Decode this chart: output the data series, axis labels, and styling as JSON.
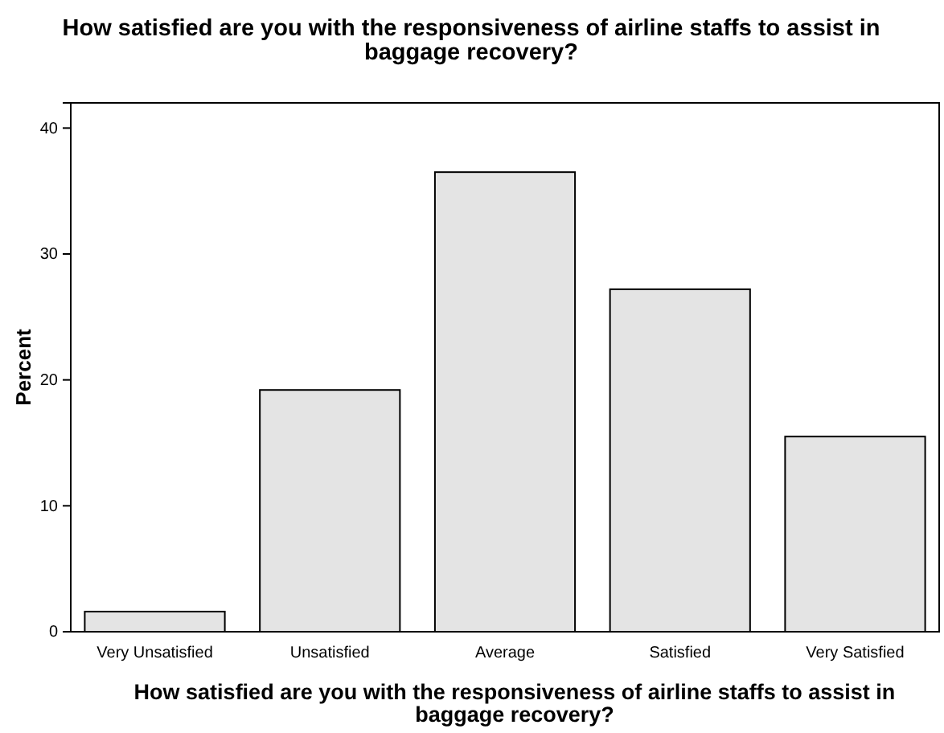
{
  "chart_data": {
    "type": "bar",
    "title": "How satisfied are you with the responsiveness of airline staffs to assist in baggage recovery?",
    "xlabel": "How satisfied are you with the responsiveness of airline staffs to assist in baggage recovery?",
    "ylabel": "Percent",
    "categories": [
      "Very Unsatisfied",
      "Unsatisfied",
      "Average",
      "Satisfied",
      "Very Satisfied"
    ],
    "values": [
      1.6,
      19.2,
      36.5,
      27.2,
      15.5
    ],
    "color": "#e4e4e4",
    "ylim": [
      0,
      42
    ],
    "yticks": [
      0,
      10,
      20,
      30,
      40
    ],
    "grid": false
  }
}
